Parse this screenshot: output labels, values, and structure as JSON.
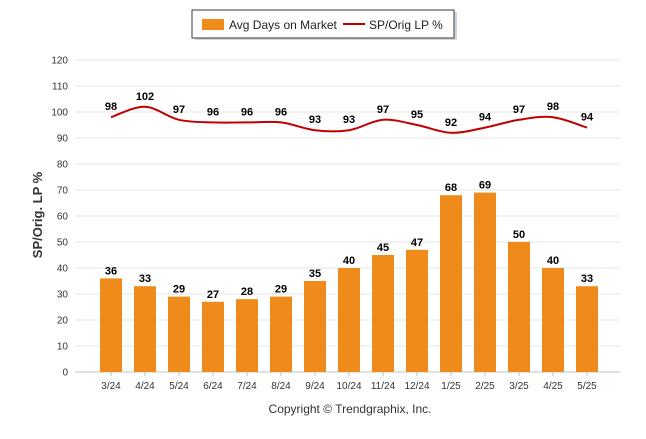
{
  "chart_data": {
    "type": "bar",
    "categories": [
      "3/24",
      "4/24",
      "5/24",
      "6/24",
      "7/24",
      "8/24",
      "9/24",
      "10/24",
      "11/24",
      "12/24",
      "1/25",
      "2/25",
      "3/25",
      "4/25",
      "5/25"
    ],
    "series": [
      {
        "name": "Avg Days on Market",
        "kind": "bar",
        "color": "#ef8b1a",
        "values": [
          36,
          33,
          29,
          27,
          28,
          29,
          35,
          40,
          45,
          47,
          68,
          69,
          50,
          40,
          33
        ]
      },
      {
        "name": "SP/Orig LP %",
        "kind": "line",
        "color": "#c00000",
        "values": [
          98,
          102,
          97,
          96,
          96,
          96,
          93,
          93,
          97,
          95,
          92,
          94,
          97,
          98,
          94
        ]
      }
    ],
    "ylabel": "SP/Orig. LP %",
    "ylim": [
      0,
      120
    ],
    "yticks": [
      0,
      10,
      20,
      30,
      40,
      50,
      60,
      70,
      80,
      90,
      100,
      110,
      120
    ],
    "grid": true,
    "legend_position": "top-center"
  },
  "footer": {
    "copyright": "Copyright © Trendgraphix, Inc."
  }
}
